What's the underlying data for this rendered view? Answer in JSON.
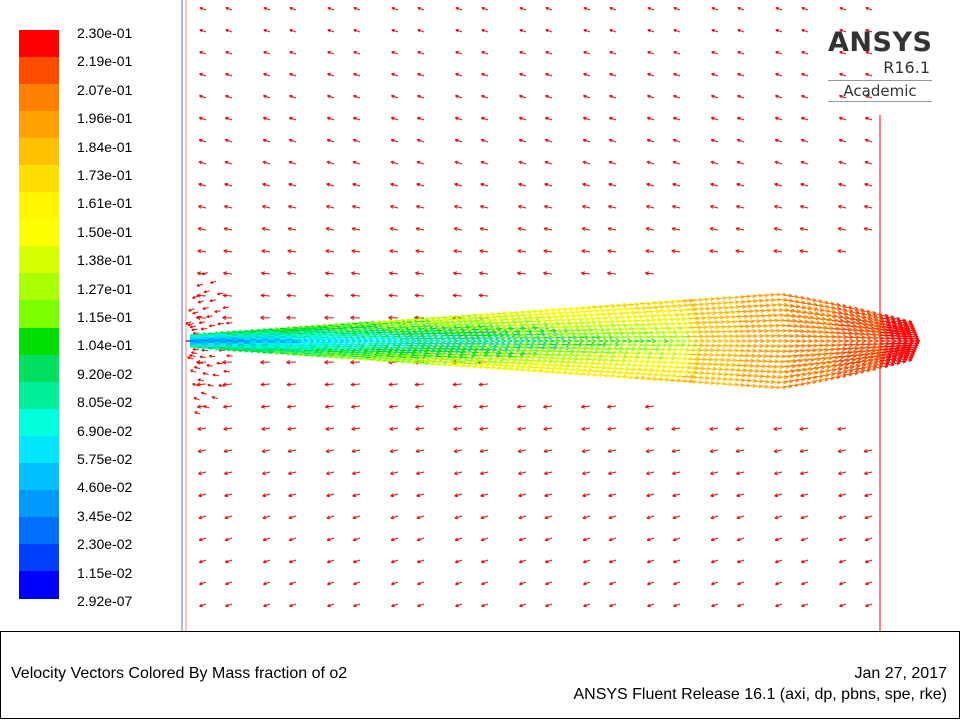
{
  "chart_data": {
    "type": "vector-field",
    "colorbar": {
      "labels": [
        "2.30e-01",
        "2.19e-01",
        "2.07e-01",
        "1.96e-01",
        "1.84e-01",
        "1.73e-01",
        "1.61e-01",
        "1.50e-01",
        "1.38e-01",
        "1.27e-01",
        "1.15e-01",
        "1.04e-01",
        "9.20e-02",
        "8.05e-02",
        "6.90e-02",
        "5.75e-02",
        "4.60e-02",
        "3.45e-02",
        "2.30e-02",
        "1.15e-02",
        "2.92e-07"
      ],
      "colors": [
        "#ff0000",
        "#ff4d00",
        "#ff7f00",
        "#ffa200",
        "#ffc000",
        "#ffdf00",
        "#fff600",
        "#ffff00",
        "#d8ff00",
        "#aaff00",
        "#7eff00",
        "#00e000",
        "#00e060",
        "#00ee99",
        "#00ffdd",
        "#00e6ff",
        "#00c0ff",
        "#0099ff",
        "#0070ff",
        "#0040ff",
        "#0000ff"
      ],
      "min": 2.92e-07,
      "max": 0.23
    },
    "title": "Velocity Vectors Colored By Mass fraction of o2"
  },
  "logo": {
    "name": "ANSYS",
    "version": "R16.1",
    "edition": "Academic"
  },
  "footer": {
    "title": "Velocity Vectors Colored By Mass fraction of o2",
    "date": "Jan 27, 2017",
    "release": "ANSYS Fluent Release 16.1 (axi, dp, pbns, spe, rke)"
  }
}
